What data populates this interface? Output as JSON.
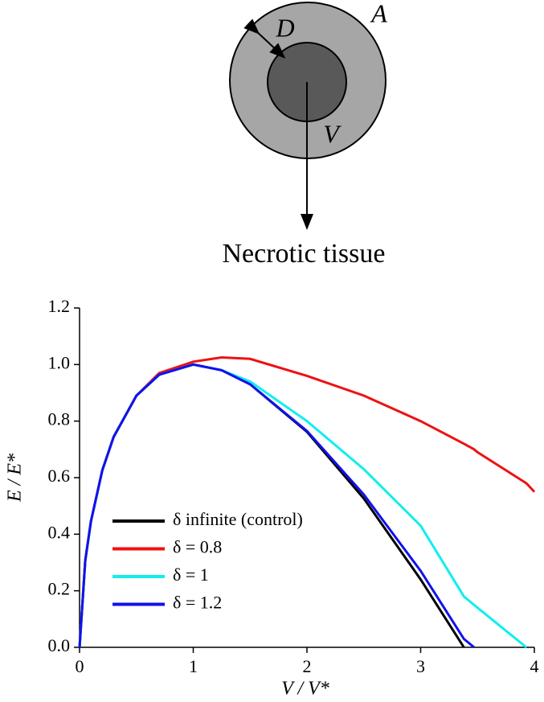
{
  "diagram": {
    "labels": {
      "d": "D",
      "a": "A",
      "v": "V"
    },
    "caption": "Necrotic tissue"
  },
  "chart_data": {
    "type": "line",
    "xlabel": "V / V*",
    "ylabel": "E / E*",
    "x": [
      0,
      0.05,
      0.1,
      0.2,
      0.3,
      0.5,
      0.7,
      1,
      1.25,
      1.5,
      2,
      2.5,
      3,
      3.38,
      3.47,
      3.5,
      3.93,
      4
    ],
    "series": [
      {
        "name": "δ infinite (control)",
        "color": "#000000",
        "values": [
          0,
          0.307,
          0.446,
          0.626,
          0.744,
          0.89,
          0.964,
          1,
          0.98,
          0.93,
          0.762,
          0.526,
          0.24,
          0,
          null,
          null,
          null,
          null
        ]
      },
      {
        "name": "δ = 0.8",
        "color": "#ee1111",
        "values": [
          0,
          0.307,
          0.446,
          0.626,
          0.744,
          0.89,
          0.97,
          1.01,
          1.025,
          1.02,
          0.96,
          0.89,
          0.8,
          0.72,
          0.7,
          0.69,
          0.58,
          0.55
        ]
      },
      {
        "name": "δ = 1",
        "color": "#11eeee",
        "values": [
          0,
          0.307,
          0.446,
          0.626,
          0.744,
          0.89,
          0.964,
          1,
          0.98,
          0.94,
          0.8,
          0.63,
          0.43,
          0.18,
          0.15,
          0.14,
          0,
          null
        ]
      },
      {
        "name": "δ = 1.2",
        "color": "#1111ee",
        "values": [
          0,
          0.307,
          0.446,
          0.626,
          0.744,
          0.89,
          0.964,
          1,
          0.98,
          0.93,
          0.765,
          0.54,
          0.27,
          0.03,
          0,
          null,
          null,
          null
        ]
      }
    ],
    "xlim": [
      0,
      4
    ],
    "xticks": [
      0,
      1,
      2,
      3,
      4
    ],
    "ylim": [
      0,
      1.2
    ],
    "yticks": [
      {
        "value": 0,
        "label": "0.0"
      },
      {
        "value": 0.2,
        "label": "0.2"
      },
      {
        "value": 0.4,
        "label": "0.4"
      },
      {
        "value": 0.6,
        "label": "0.6"
      },
      {
        "value": 0.8,
        "label": "0.8"
      },
      {
        "value": 1,
        "label": "1.0"
      },
      {
        "value": 1.2,
        "label": "1.2"
      }
    ],
    "legend": "lower left",
    "grid": false
  }
}
